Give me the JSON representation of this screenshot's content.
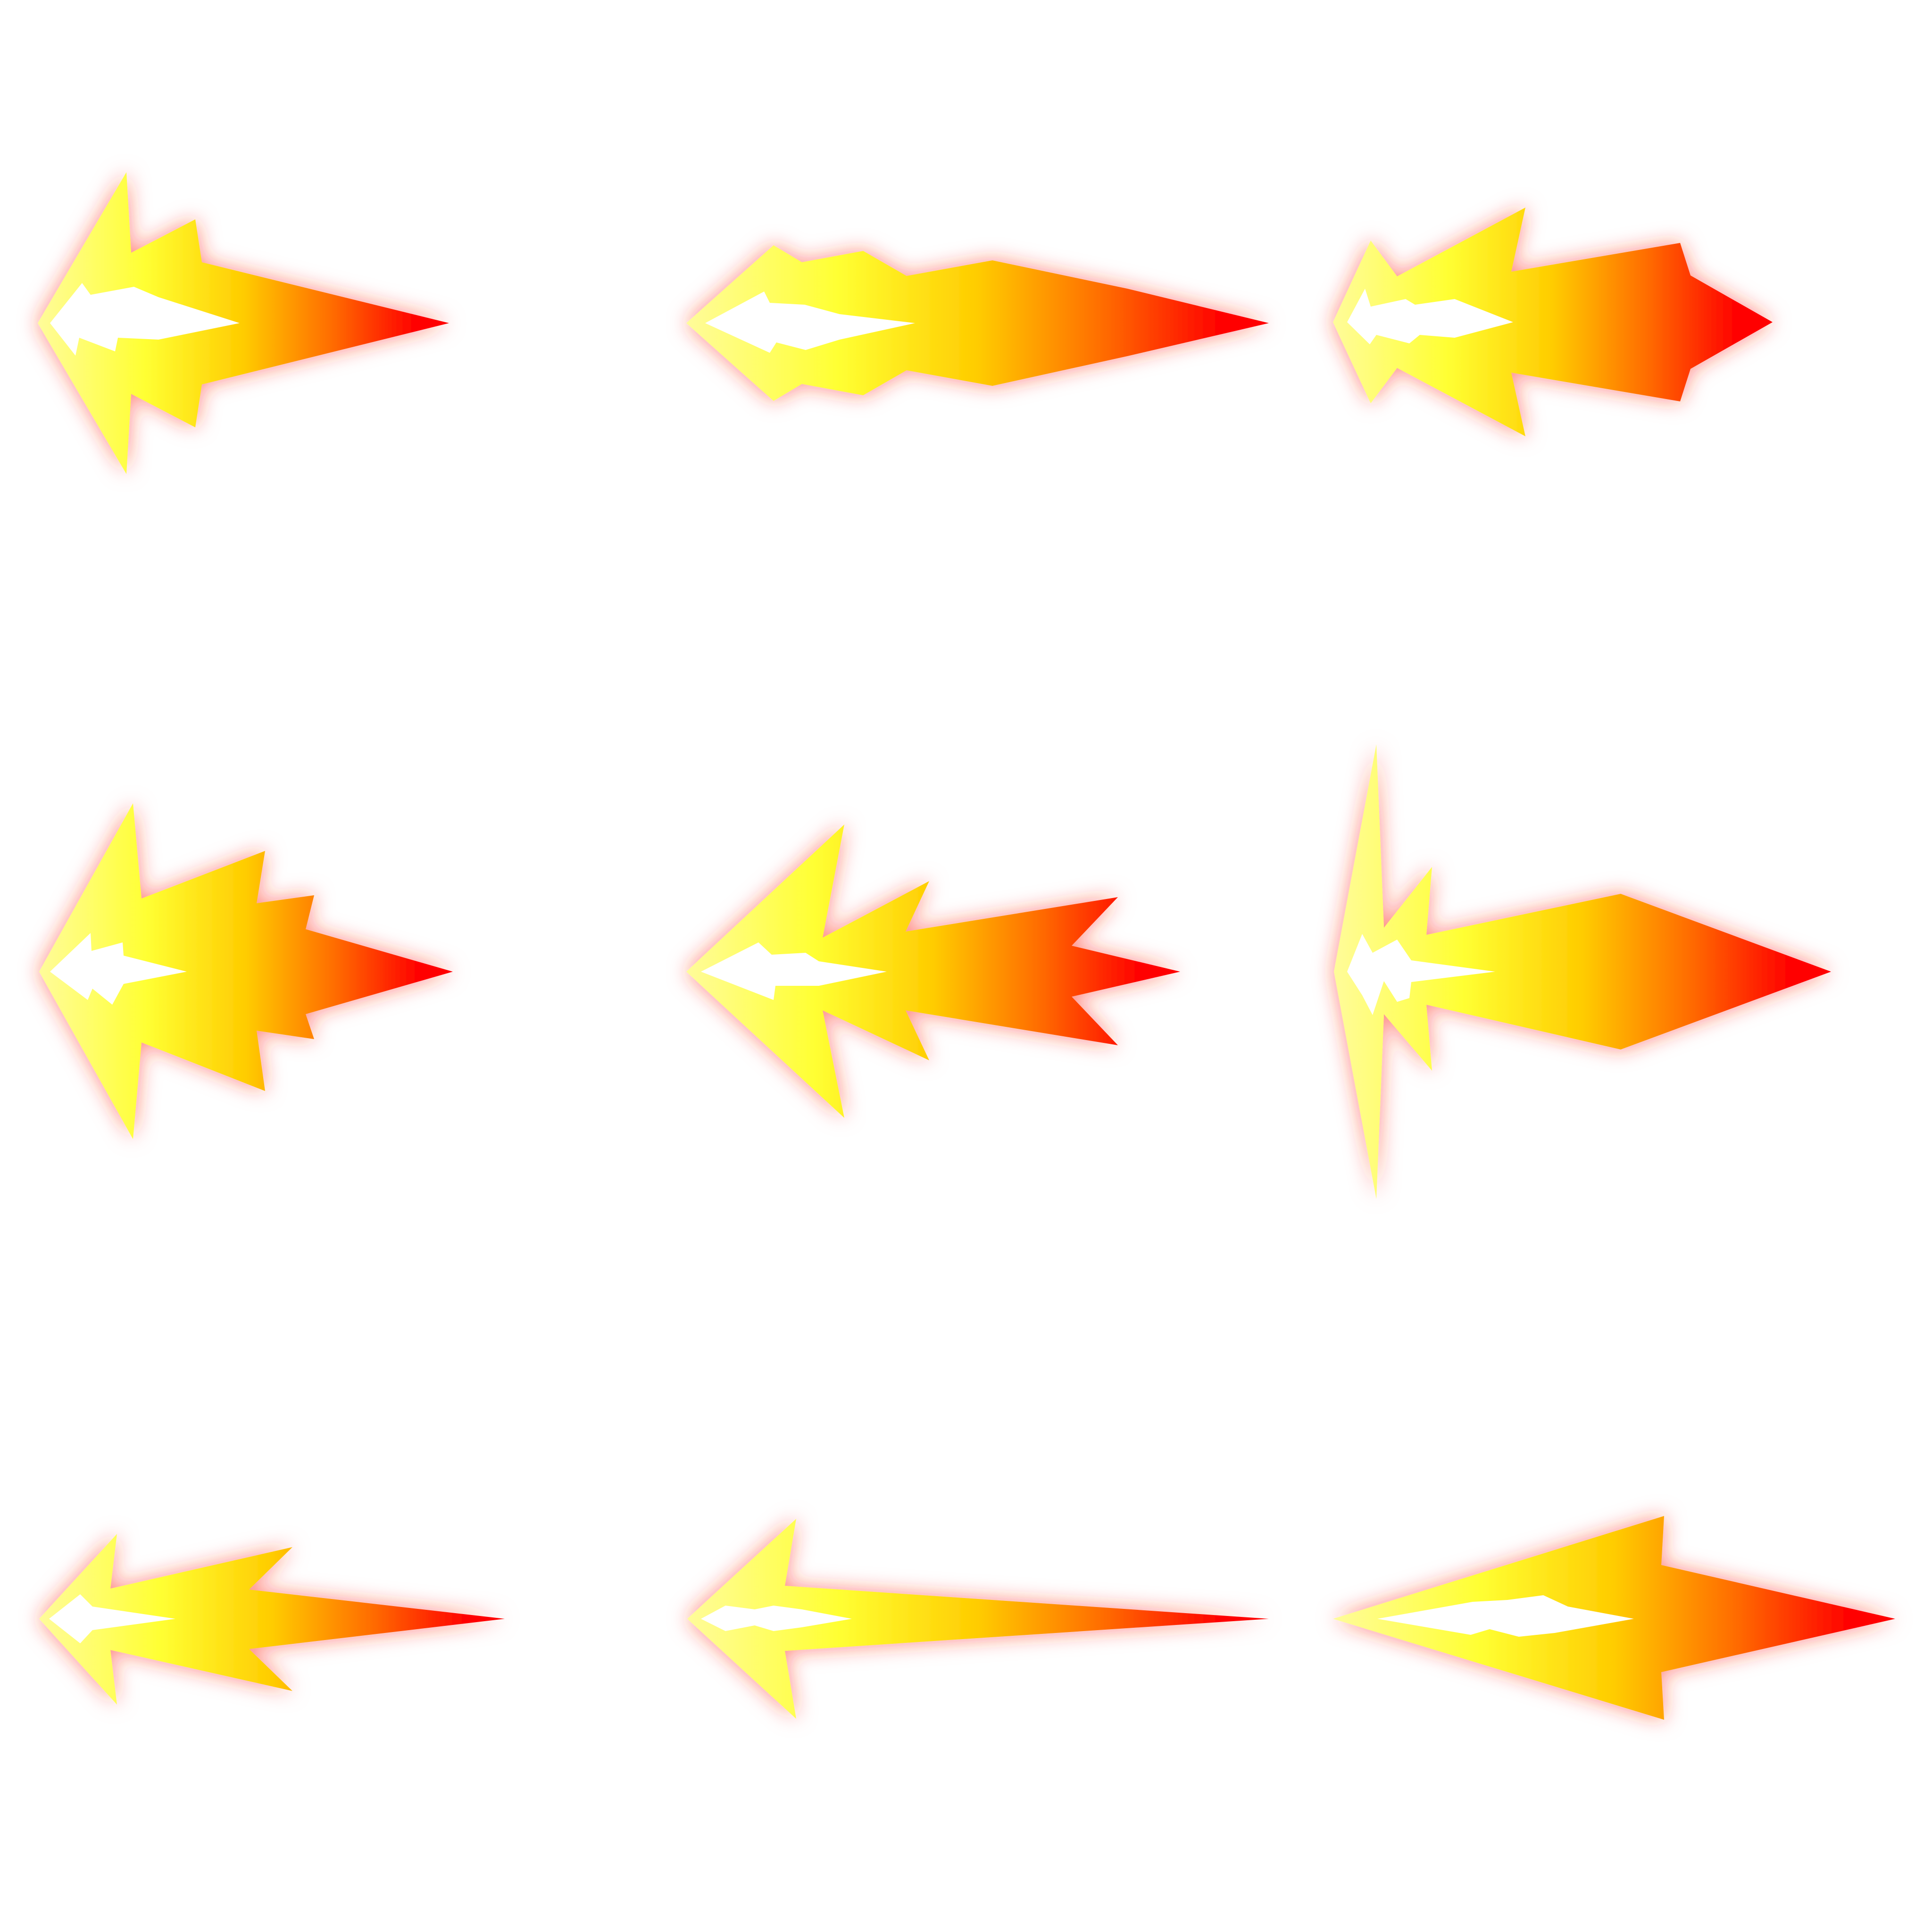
{
  "background_color": "#ffffff",
  "palette": {
    "tail": "#fffc9a",
    "body": "#ffff33",
    "mid": "#ffcc00",
    "hot": "#ff6a00",
    "tip": "#ff0000",
    "core": "#ffffff",
    "glow": "#ff2a1a"
  },
  "sprites": [
    {
      "name": "fire-arrow-1",
      "icon": "fire-arrow-icon"
    },
    {
      "name": "fire-arrow-2",
      "icon": "fire-arrow-icon"
    },
    {
      "name": "fire-arrow-3",
      "icon": "fire-arrow-icon"
    },
    {
      "name": "fire-arrow-4",
      "icon": "fire-arrow-icon"
    },
    {
      "name": "fire-arrow-5",
      "icon": "fire-arrow-icon"
    },
    {
      "name": "fire-arrow-6",
      "icon": "fire-arrow-icon"
    },
    {
      "name": "fire-arrow-7",
      "icon": "fire-arrow-icon"
    },
    {
      "name": "fire-arrow-8",
      "icon": "fire-arrow-icon"
    },
    {
      "name": "fire-arrow-9",
      "icon": "fire-arrow-icon"
    }
  ]
}
